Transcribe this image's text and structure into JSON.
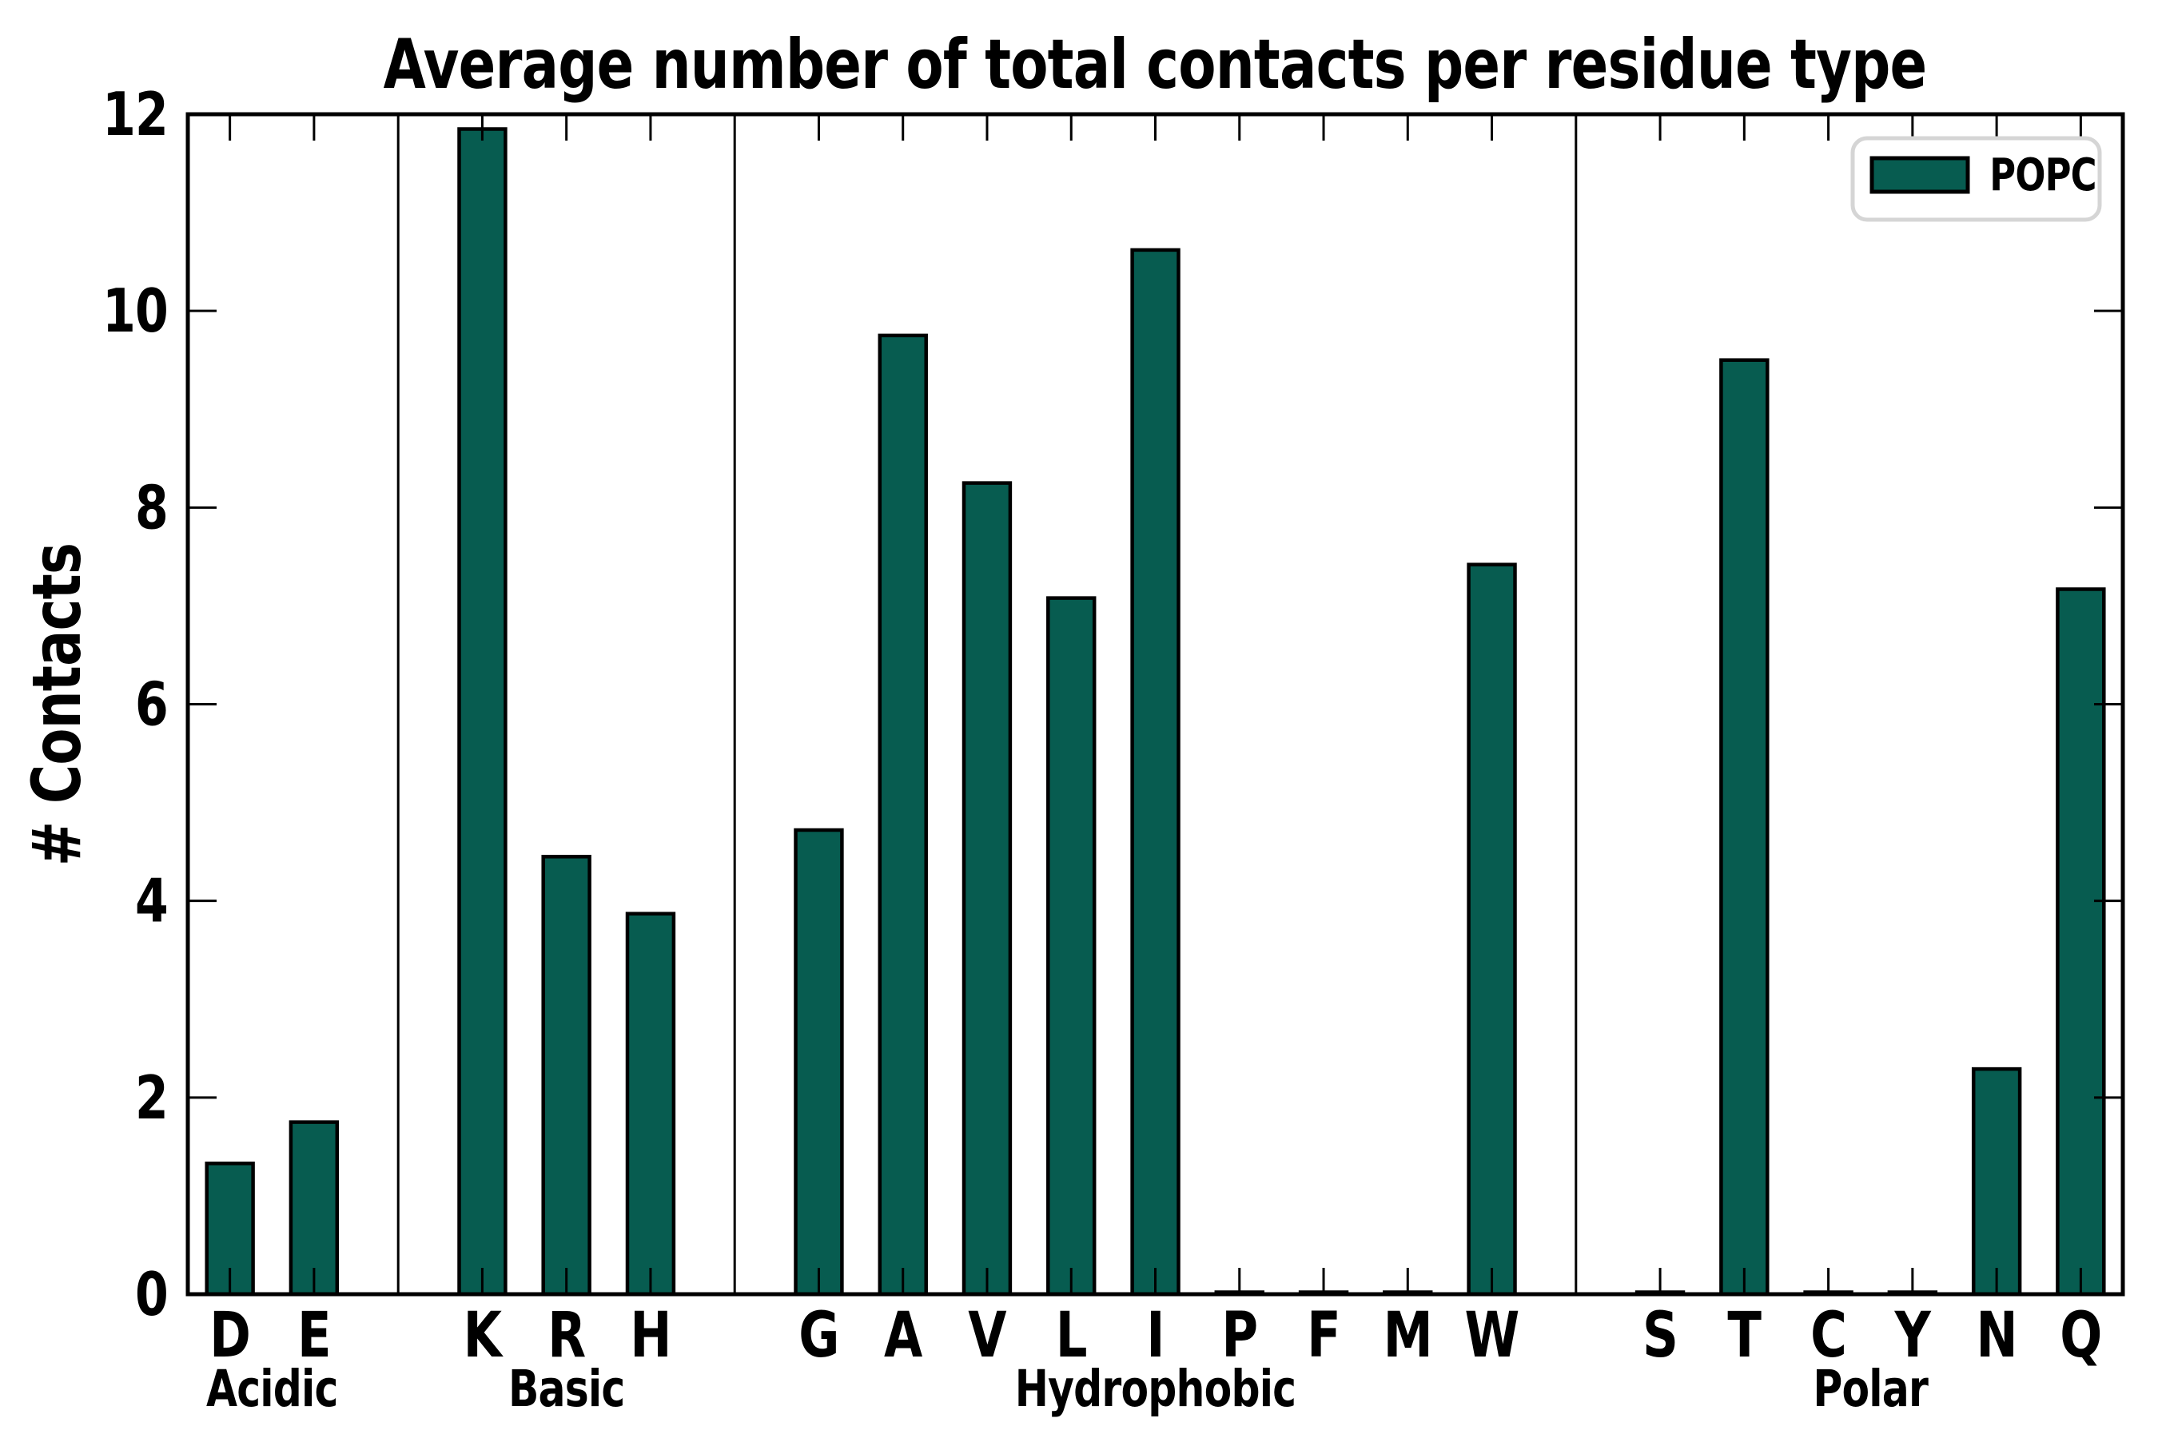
{
  "figure": {
    "title": "Average number of total contacts per residue type",
    "ylabel": "# Contacts",
    "legend": {
      "label": "POPC"
    }
  },
  "chart_data": {
    "type": "bar",
    "title": "Average number of total contacts per residue type",
    "xlabel": "",
    "ylabel": "# Contacts",
    "ylim": [
      0,
      12
    ],
    "yticks": [
      0,
      2,
      4,
      6,
      8,
      10,
      12
    ],
    "grid": false,
    "legend_position": "upper right",
    "series_name": "POPC",
    "bar_color": "#075c50",
    "bar_edge_color": "#000000",
    "separator_color": "#000000",
    "legend_border_color": "#d5d5d5",
    "groups": [
      {
        "label": "Acidic",
        "categories": [
          "D",
          "E"
        ],
        "values": [
          1.33,
          1.75
        ]
      },
      {
        "label": "Basic",
        "categories": [
          "K",
          "R",
          "H"
        ],
        "values": [
          11.85,
          4.45,
          3.87
        ]
      },
      {
        "label": "Hydrophobic",
        "categories": [
          "G",
          "A",
          "V",
          "L",
          "I",
          "P",
          "F",
          "M",
          "W"
        ],
        "values": [
          4.72,
          9.75,
          8.25,
          7.08,
          10.62,
          0.02,
          0.02,
          0.02,
          7.42
        ]
      },
      {
        "label": "Polar",
        "categories": [
          "S",
          "T",
          "C",
          "Y",
          "N",
          "Q"
        ],
        "values": [
          0.02,
          9.5,
          0.02,
          0.02,
          2.29,
          7.17
        ]
      }
    ]
  }
}
